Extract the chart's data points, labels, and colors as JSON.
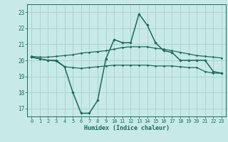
{
  "xlabel": "Humidex (Indice chaleur)",
  "background_color": "#c8eae6",
  "grid_color": "#a8d4d0",
  "line_color": "#1a6b5a",
  "x": [
    0,
    1,
    2,
    3,
    4,
    5,
    6,
    7,
    8,
    9,
    10,
    11,
    12,
    13,
    14,
    15,
    16,
    17,
    18,
    19,
    20,
    21,
    22,
    23
  ],
  "line1": [
    20.2,
    20.1,
    20.0,
    19.95,
    19.6,
    19.55,
    19.5,
    19.55,
    19.6,
    19.65,
    19.7,
    19.7,
    19.7,
    19.7,
    19.7,
    19.65,
    19.65,
    19.65,
    19.6,
    19.55,
    19.55,
    19.3,
    19.2,
    19.2
  ],
  "line2": [
    20.2,
    20.1,
    20.0,
    20.0,
    19.6,
    18.0,
    16.7,
    16.7,
    17.5,
    20.1,
    21.3,
    21.1,
    21.1,
    22.9,
    22.2,
    21.1,
    20.6,
    20.5,
    20.0,
    20.0,
    20.0,
    20.0,
    19.3,
    19.2
  ],
  "line3": [
    20.25,
    20.2,
    20.2,
    20.25,
    20.3,
    20.35,
    20.45,
    20.5,
    20.55,
    20.6,
    20.7,
    20.8,
    20.85,
    20.85,
    20.85,
    20.75,
    20.7,
    20.6,
    20.5,
    20.4,
    20.3,
    20.25,
    20.2,
    20.15
  ],
  "ylim": [
    16.5,
    23.5
  ],
  "yticks": [
    17,
    18,
    19,
    20,
    21,
    22,
    23
  ],
  "xlim": [
    -0.5,
    23.5
  ]
}
